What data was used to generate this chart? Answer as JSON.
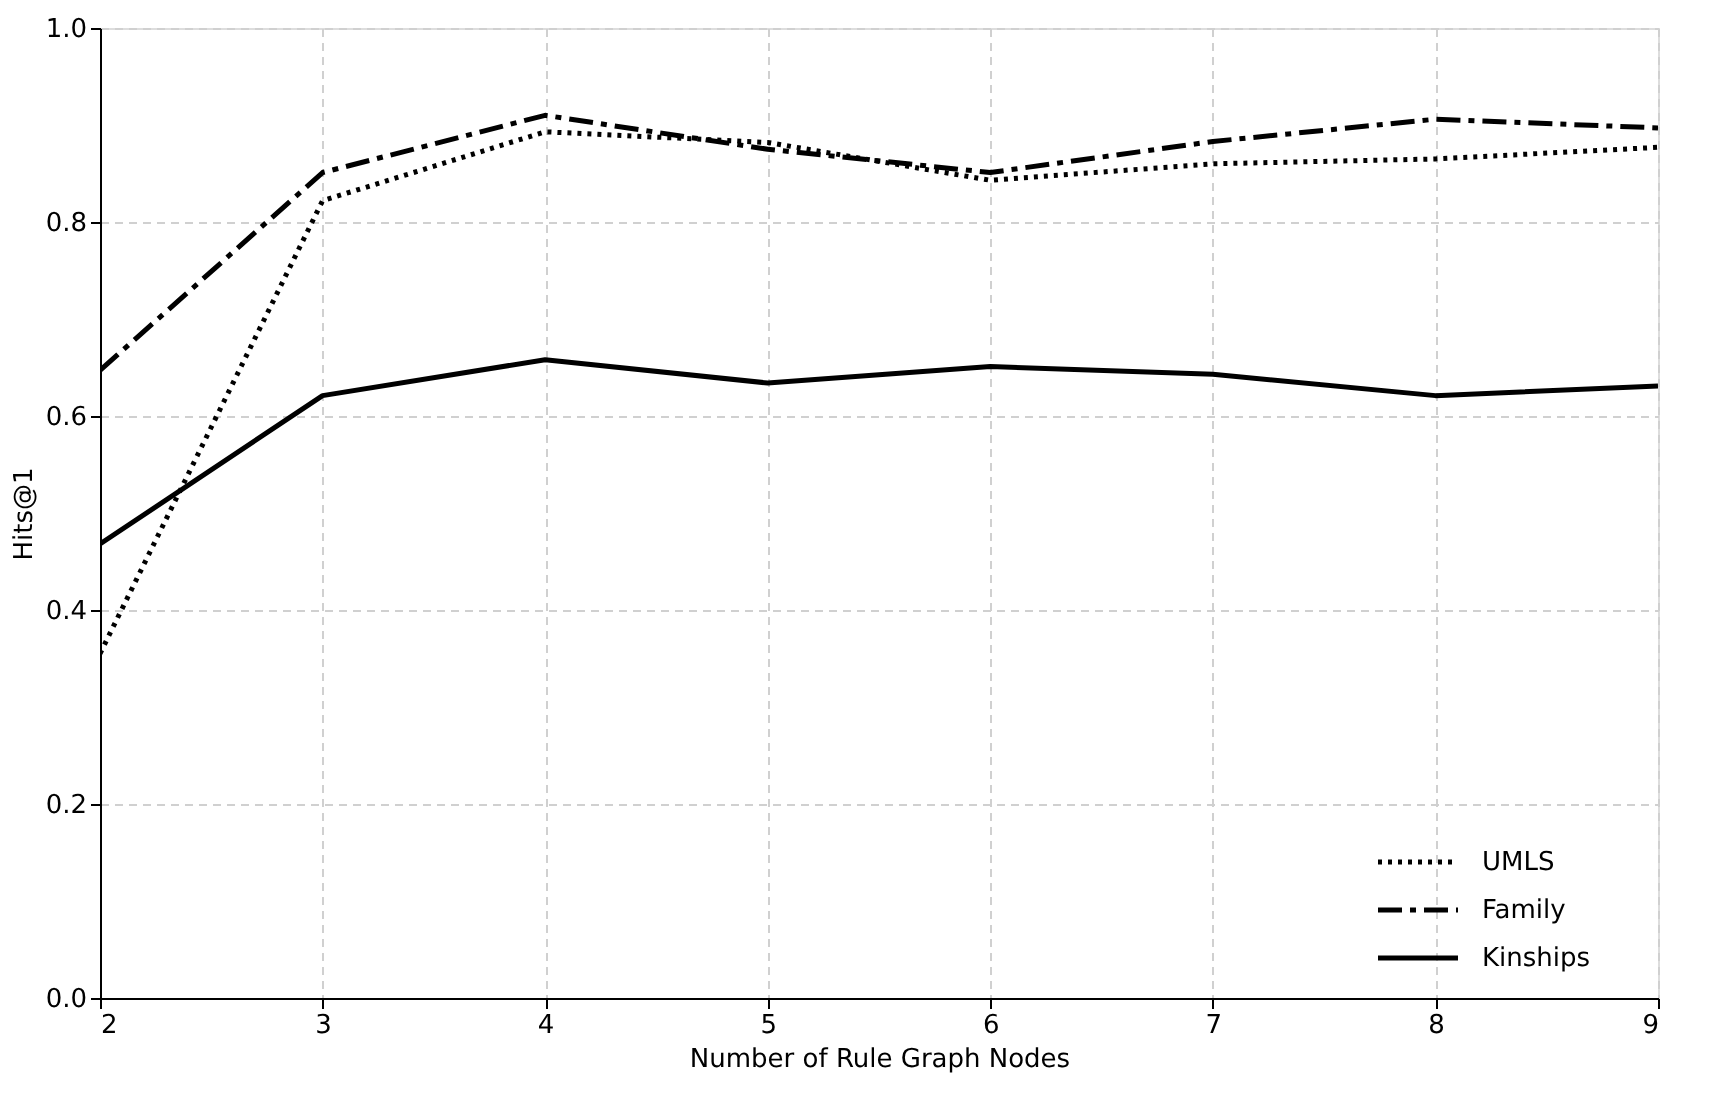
{
  "chart_data": {
    "type": "line",
    "xlabel": "Number of Rule Graph Nodes",
    "ylabel": "Hits@1",
    "x": [
      2,
      3,
      4,
      5,
      6,
      7,
      8,
      9
    ],
    "series": [
      {
        "name": "UMLS",
        "color": "#000000",
        "line_style": "dotted",
        "values": [
          0.355,
          0.822,
          0.893,
          0.882,
          0.843,
          0.86,
          0.865,
          0.877
        ]
      },
      {
        "name": "Family",
        "color": "#000000",
        "line_style": "dashed",
        "values": [
          0.647,
          0.851,
          0.91,
          0.875,
          0.851,
          0.883,
          0.906,
          0.897
        ]
      },
      {
        "name": "Kinships",
        "color": "#000000",
        "line_style": "solid",
        "values": [
          0.468,
          0.621,
          0.658,
          0.634,
          0.651,
          0.643,
          0.621,
          0.631
        ]
      }
    ],
    "xlim": [
      2,
      9
    ],
    "xticks": [
      2,
      3,
      4,
      5,
      6,
      7,
      8,
      9
    ],
    "ylim": [
      0,
      1.0
    ],
    "yticks": [
      {
        "value": 0,
        "label": "0.0"
      },
      0.2,
      0.4,
      0.6,
      0.8,
      {
        "value": 1.0,
        "label": "1.0"
      }
    ],
    "grid": true,
    "legend": "bottom right",
    "marker": "none"
  }
}
